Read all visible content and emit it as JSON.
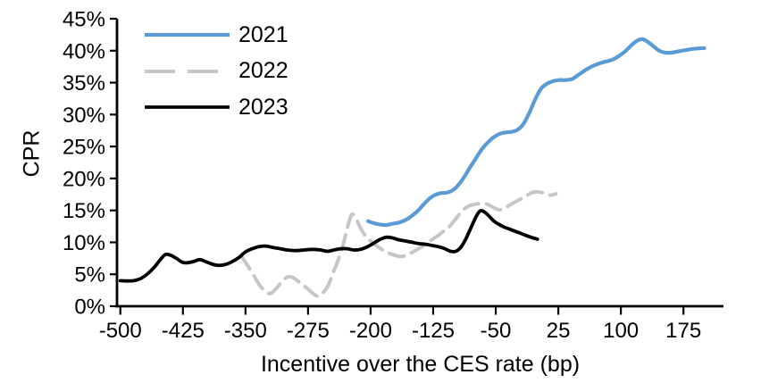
{
  "chart_data": {
    "type": "line",
    "title": "",
    "xlabel": "Incentive over the CES rate (bp)",
    "ylabel": "CPR",
    "xlim": [
      -504,
      223
    ],
    "ylim": [
      0,
      45
    ],
    "x_ticks": [
      -500,
      -425,
      -350,
      -275,
      -200,
      -125,
      -50,
      25,
      100,
      175
    ],
    "y_ticks": [
      0,
      5,
      10,
      15,
      20,
      25,
      30,
      35,
      40,
      45
    ],
    "y_tick_suffix": "%",
    "grid": false,
    "legend_position": "top-left-inside",
    "axis_color": "#000000",
    "series": [
      {
        "name": "2021",
        "color": "#5B9BD5",
        "dash": "solid",
        "width": 4.2,
        "points": [
          [
            -203,
            13.3
          ],
          [
            -196,
            13.0
          ],
          [
            -189,
            12.8
          ],
          [
            -182,
            12.7
          ],
          [
            -174,
            12.9
          ],
          [
            -166,
            13.1
          ],
          [
            -158,
            13.5
          ],
          [
            -150,
            14.2
          ],
          [
            -143,
            15.0
          ],
          [
            -136,
            16.0
          ],
          [
            -129,
            16.9
          ],
          [
            -123,
            17.4
          ],
          [
            -116,
            17.7
          ],
          [
            -108,
            17.8
          ],
          [
            -101,
            18.2
          ],
          [
            -94,
            19.1
          ],
          [
            -87,
            20.4
          ],
          [
            -80,
            21.9
          ],
          [
            -73,
            23.3
          ],
          [
            -66,
            24.7
          ],
          [
            -59,
            25.7
          ],
          [
            -52,
            26.5
          ],
          [
            -45,
            27.0
          ],
          [
            -38,
            27.2
          ],
          [
            -31,
            27.3
          ],
          [
            -24,
            27.6
          ],
          [
            -17,
            28.5
          ],
          [
            -10,
            30.2
          ],
          [
            -3,
            32.3
          ],
          [
            4,
            34.0
          ],
          [
            11,
            34.8
          ],
          [
            18,
            35.2
          ],
          [
            26,
            35.4
          ],
          [
            34,
            35.4
          ],
          [
            42,
            35.6
          ],
          [
            50,
            36.3
          ],
          [
            58,
            37.0
          ],
          [
            66,
            37.6
          ],
          [
            74,
            38.0
          ],
          [
            82,
            38.3
          ],
          [
            90,
            38.6
          ],
          [
            98,
            39.2
          ],
          [
            106,
            40.0
          ],
          [
            113,
            40.9
          ],
          [
            120,
            41.6
          ],
          [
            126,
            41.8
          ],
          [
            132,
            41.4
          ],
          [
            139,
            40.7
          ],
          [
            146,
            40.0
          ],
          [
            153,
            39.7
          ],
          [
            161,
            39.7
          ],
          [
            169,
            39.9
          ],
          [
            178,
            40.1
          ],
          [
            188,
            40.3
          ],
          [
            200,
            40.4
          ]
        ]
      },
      {
        "name": "2022",
        "color": "#C6C6C6",
        "dash": "dashed",
        "width": 4.0,
        "points": [
          [
            -355,
            7.8
          ],
          [
            -348,
            6.5
          ],
          [
            -340,
            4.8
          ],
          [
            -333,
            3.3
          ],
          [
            -326,
            2.3
          ],
          [
            -320,
            2.0
          ],
          [
            -313,
            2.8
          ],
          [
            -306,
            3.9
          ],
          [
            -299,
            4.6
          ],
          [
            -292,
            4.4
          ],
          [
            -284,
            3.6
          ],
          [
            -277,
            2.9
          ],
          [
            -270,
            2.1
          ],
          [
            -264,
            1.6
          ],
          [
            -258,
            2.0
          ],
          [
            -251,
            3.2
          ],
          [
            -245,
            5.2
          ],
          [
            -239,
            7.2
          ],
          [
            -233,
            9.6
          ],
          [
            -228,
            12.2
          ],
          [
            -224,
            14.0
          ],
          [
            -221,
            14.4
          ],
          [
            -217,
            13.6
          ],
          [
            -212,
            12.2
          ],
          [
            -206,
            11.0
          ],
          [
            -199,
            10.1
          ],
          [
            -191,
            9.3
          ],
          [
            -183,
            8.6
          ],
          [
            -174,
            8.1
          ],
          [
            -165,
            7.8
          ],
          [
            -156,
            8.0
          ],
          [
            -148,
            8.6
          ],
          [
            -139,
            9.3
          ],
          [
            -130,
            10.1
          ],
          [
            -121,
            10.9
          ],
          [
            -113,
            11.7
          ],
          [
            -106,
            12.4
          ],
          [
            -99,
            13.5
          ],
          [
            -93,
            14.5
          ],
          [
            -87,
            15.3
          ],
          [
            -80,
            15.8
          ],
          [
            -73,
            16.0
          ],
          [
            -66,
            16.1
          ],
          [
            -59,
            15.9
          ],
          [
            -52,
            15.4
          ],
          [
            -46,
            15.1
          ],
          [
            -39,
            15.4
          ],
          [
            -31,
            16.0
          ],
          [
            -23,
            16.6
          ],
          [
            -15,
            17.1
          ],
          [
            -8,
            17.7
          ],
          [
            -2,
            17.9
          ],
          [
            5,
            17.8
          ],
          [
            11,
            17.5
          ],
          [
            17,
            17.4
          ],
          [
            22,
            17.6
          ]
        ]
      },
      {
        "name": "2023",
        "color": "#000000",
        "dash": "solid",
        "width": 3.8,
        "points": [
          [
            -500,
            4.0
          ],
          [
            -492,
            3.95
          ],
          [
            -484,
            4.0
          ],
          [
            -476,
            4.3
          ],
          [
            -468,
            5.0
          ],
          [
            -460,
            6.0
          ],
          [
            -452,
            7.3
          ],
          [
            -446,
            8.1
          ],
          [
            -440,
            8.0
          ],
          [
            -433,
            7.5
          ],
          [
            -426,
            6.9
          ],
          [
            -420,
            6.8
          ],
          [
            -412,
            7.0
          ],
          [
            -405,
            7.3
          ],
          [
            -398,
            7.0
          ],
          [
            -390,
            6.6
          ],
          [
            -383,
            6.4
          ],
          [
            -375,
            6.5
          ],
          [
            -367,
            6.9
          ],
          [
            -358,
            7.6
          ],
          [
            -350,
            8.5
          ],
          [
            -342,
            9.0
          ],
          [
            -333,
            9.35
          ],
          [
            -325,
            9.4
          ],
          [
            -317,
            9.2
          ],
          [
            -308,
            9.0
          ],
          [
            -300,
            8.8
          ],
          [
            -290,
            8.7
          ],
          [
            -280,
            8.8
          ],
          [
            -270,
            8.9
          ],
          [
            -260,
            8.8
          ],
          [
            -252,
            8.6
          ],
          [
            -244,
            8.8
          ],
          [
            -236,
            9.0
          ],
          [
            -228,
            9.0
          ],
          [
            -220,
            8.8
          ],
          [
            -212,
            8.9
          ],
          [
            -204,
            9.3
          ],
          [
            -196,
            9.9
          ],
          [
            -188,
            10.5
          ],
          [
            -181,
            10.8
          ],
          [
            -174,
            10.7
          ],
          [
            -166,
            10.4
          ],
          [
            -158,
            10.2
          ],
          [
            -150,
            10.0
          ],
          [
            -142,
            9.8
          ],
          [
            -134,
            9.7
          ],
          [
            -126,
            9.5
          ],
          [
            -118,
            9.3
          ],
          [
            -111,
            9.0
          ],
          [
            -104,
            8.6
          ],
          [
            -98,
            8.6
          ],
          [
            -92,
            9.2
          ],
          [
            -86,
            10.5
          ],
          [
            -80,
            12.2
          ],
          [
            -74,
            13.9
          ],
          [
            -69,
            14.9
          ],
          [
            -64,
            14.8
          ],
          [
            -58,
            14.1
          ],
          [
            -52,
            13.3
          ],
          [
            -46,
            12.8
          ],
          [
            -40,
            12.4
          ],
          [
            -32,
            12.0
          ],
          [
            -24,
            11.6
          ],
          [
            -16,
            11.2
          ],
          [
            -8,
            10.8
          ],
          [
            0,
            10.5
          ]
        ]
      }
    ]
  }
}
